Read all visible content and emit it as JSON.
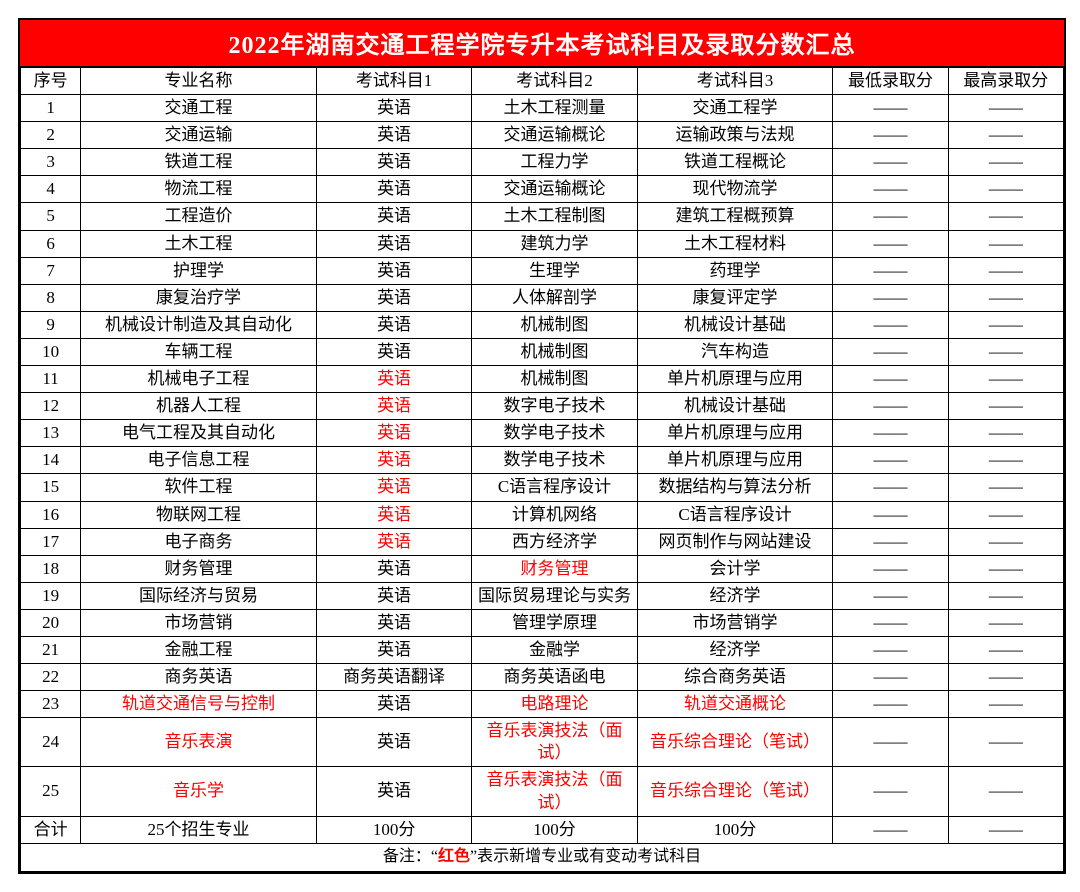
{
  "title": "2022年湖南交通工程学院专升本考试科目及录取分数汇总",
  "columns": [
    "序号",
    "专业名称",
    "考试科目1",
    "考试科目2",
    "考试科目3",
    "最低录取分",
    "最高录取分"
  ],
  "dash": "——",
  "rows": [
    {
      "seq": "1",
      "name": "交通工程",
      "s1": "英语",
      "s2": "土木工程测量",
      "s3": "交通工程学"
    },
    {
      "seq": "2",
      "name": "交通运输",
      "s1": "英语",
      "s2": "交通运输概论",
      "s3": "运输政策与法规"
    },
    {
      "seq": "3",
      "name": "铁道工程",
      "s1": "英语",
      "s2": "工程力学",
      "s3": "铁道工程概论"
    },
    {
      "seq": "4",
      "name": "物流工程",
      "s1": "英语",
      "s2": "交通运输概论",
      "s3": "现代物流学"
    },
    {
      "seq": "5",
      "name": "工程造价",
      "s1": "英语",
      "s2": "土木工程制图",
      "s3": "建筑工程概预算"
    },
    {
      "seq": "6",
      "name": "土木工程",
      "s1": "英语",
      "s2": "建筑力学",
      "s3": "土木工程材料"
    },
    {
      "seq": "7",
      "name": "护理学",
      "s1": "英语",
      "s2": "生理学",
      "s3": "药理学"
    },
    {
      "seq": "8",
      "name": "康复治疗学",
      "s1": "英语",
      "s2": "人体解剖学",
      "s3": "康复评定学"
    },
    {
      "seq": "9",
      "name": "机械设计制造及其自动化",
      "s1": "英语",
      "s2": "机械制图",
      "s3": "机械设计基础"
    },
    {
      "seq": "10",
      "name": "车辆工程",
      "s1": "英语",
      "s2": "机械制图",
      "s3": "汽车构造"
    },
    {
      "seq": "11",
      "name": "机械电子工程",
      "s1": "英语",
      "s1_red": true,
      "s2": "机械制图",
      "s3": "单片机原理与应用"
    },
    {
      "seq": "12",
      "name": "机器人工程",
      "s1": "英语",
      "s1_red": true,
      "s2": "数字电子技术",
      "s3": "机械设计基础"
    },
    {
      "seq": "13",
      "name": "电气工程及其自动化",
      "s1": "英语",
      "s1_red": true,
      "s2": "数学电子技术",
      "s3": "单片机原理与应用"
    },
    {
      "seq": "14",
      "name": "电子信息工程",
      "s1": "英语",
      "s1_red": true,
      "s2": "数学电子技术",
      "s3": "单片机原理与应用"
    },
    {
      "seq": "15",
      "name": "软件工程",
      "s1": "英语",
      "s1_red": true,
      "s2": "C语言程序设计",
      "s3": "数据结构与算法分析"
    },
    {
      "seq": "16",
      "name": "物联网工程",
      "s1": "英语",
      "s1_red": true,
      "s2": "计算机网络",
      "s3": "C语言程序设计"
    },
    {
      "seq": "17",
      "name": "电子商务",
      "s1": "英语",
      "s1_red": true,
      "s2": "西方经济学",
      "s3": "网页制作与网站建设"
    },
    {
      "seq": "18",
      "name": "财务管理",
      "s1": "英语",
      "s2": "财务管理",
      "s2_red": true,
      "s3": "会计学"
    },
    {
      "seq": "19",
      "name": "国际经济与贸易",
      "s1": "英语",
      "s2": "国际贸易理论与实务",
      "s3": "经济学"
    },
    {
      "seq": "20",
      "name": "市场营销",
      "s1": "英语",
      "s2": "管理学原理",
      "s3": "市场营销学"
    },
    {
      "seq": "21",
      "name": "金融工程",
      "s1": "英语",
      "s2": "金融学",
      "s3": "经济学"
    },
    {
      "seq": "22",
      "name": "商务英语",
      "s1": "商务英语翻译",
      "s2": "商务英语函电",
      "s3": "综合商务英语"
    },
    {
      "seq": "23",
      "name": "轨道交通信号与控制",
      "name_red": true,
      "s1": "英语",
      "s2": "电路理论",
      "s2_red": true,
      "s3": "轨道交通概论",
      "s3_red": true
    },
    {
      "seq": "24",
      "name": "音乐表演",
      "name_red": true,
      "s1": "英语",
      "s2": "音乐表演技法（面试）",
      "s2_red": true,
      "s3": "音乐综合理论（笔试）",
      "s3_red": true
    },
    {
      "seq": "25",
      "name": "音乐学",
      "name_red": true,
      "s1": "英语",
      "s2": "音乐表演技法（面试）",
      "s2_red": true,
      "s3": "音乐综合理论（笔试）",
      "s3_red": true
    }
  ],
  "total_row": {
    "seq": "合计",
    "name": "25个招生专业",
    "s1": "100分",
    "s2": "100分",
    "s3": "100分"
  },
  "note_prefix": "备注：“",
  "note_red": "红色",
  "note_suffix": "”表示新增专业或有变动考试科目",
  "colors": {
    "title_bg": "#ff0000",
    "title_fg": "#ffffff",
    "border": "#000000",
    "red_text": "#ff0000",
    "bg": "#ffffff"
  },
  "font_sizes": {
    "title": 24,
    "cell": 17,
    "note": 16
  }
}
